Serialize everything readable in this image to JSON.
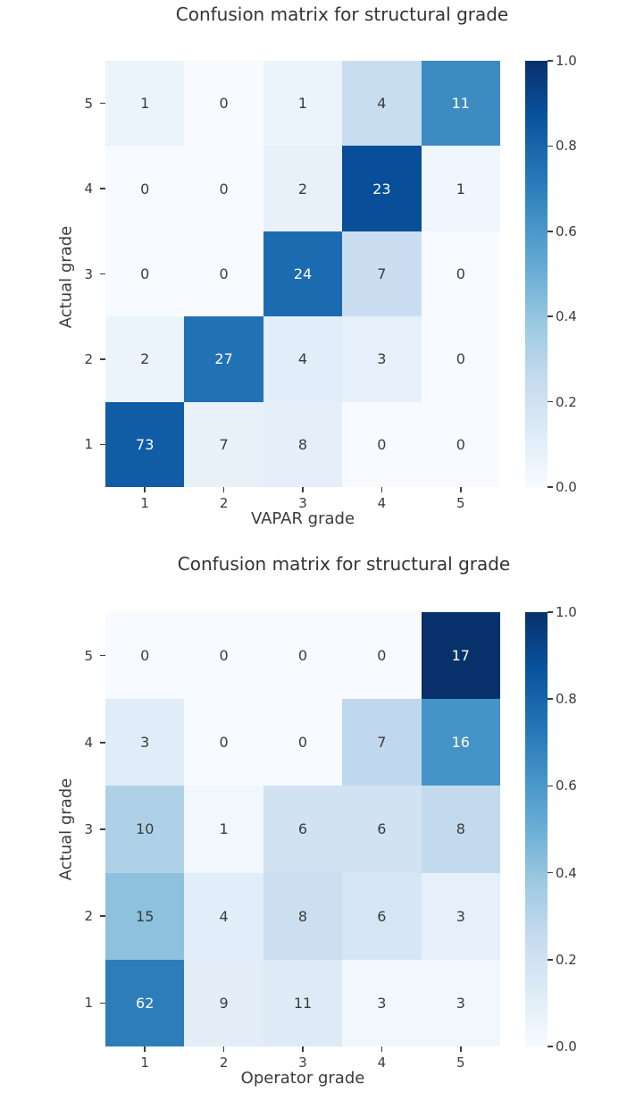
{
  "colors": {
    "background": "#ffffff",
    "title_text": "#333333",
    "axis_text": "#3b3b3b",
    "annot_dark": "#3b3b3b",
    "annot_light": "#ffffff",
    "colormap_name": "Blues",
    "blues": [
      [
        0.0,
        "#f7fbff"
      ],
      [
        0.125,
        "#deebf7"
      ],
      [
        0.25,
        "#c6dbef"
      ],
      [
        0.375,
        "#9ecae1"
      ],
      [
        0.5,
        "#6baed6"
      ],
      [
        0.625,
        "#4292c6"
      ],
      [
        0.75,
        "#2171b5"
      ],
      [
        0.875,
        "#08519c"
      ],
      [
        1.0,
        "#08306b"
      ]
    ]
  },
  "chart_data": [
    {
      "type": "heatmap",
      "title": "Confusion matrix for structural grade",
      "xlabel": "VAPAR grade",
      "ylabel": "Actual grade",
      "x_ticks": [
        "1",
        "2",
        "3",
        "4",
        "5"
      ],
      "y_ticks": [
        "5",
        "4",
        "3",
        "2",
        "1"
      ],
      "rows": [
        [
          1,
          0,
          1,
          4,
          11
        ],
        [
          0,
          0,
          2,
          23,
          1
        ],
        [
          0,
          0,
          24,
          7,
          0
        ],
        [
          2,
          27,
          4,
          3,
          0
        ],
        [
          73,
          7,
          8,
          0,
          0
        ]
      ],
      "cell_color_normalization": "row",
      "colorbar_ticks": [
        "1.0",
        "0.8",
        "0.6",
        "0.4",
        "0.2",
        "0.0"
      ],
      "colorbar_range": [
        0,
        1
      ],
      "legend_position": "right-colorbar",
      "grid": false
    },
    {
      "type": "heatmap",
      "title": "Confusion matrix for structural grade",
      "xlabel": "Operator grade",
      "ylabel": "Actual grade",
      "x_ticks": [
        "1",
        "2",
        "3",
        "4",
        "5"
      ],
      "y_ticks": [
        "5",
        "4",
        "3",
        "2",
        "1"
      ],
      "rows": [
        [
          0,
          0,
          0,
          0,
          17
        ],
        [
          3,
          0,
          0,
          7,
          16
        ],
        [
          10,
          1,
          6,
          6,
          8
        ],
        [
          15,
          4,
          8,
          6,
          3
        ],
        [
          62,
          9,
          11,
          3,
          3
        ]
      ],
      "cell_color_normalization": "row",
      "colorbar_ticks": [
        "1.0",
        "0.8",
        "0.6",
        "0.4",
        "0.2",
        "0.0"
      ],
      "colorbar_range": [
        0,
        1
      ],
      "legend_position": "right-colorbar",
      "grid": false
    }
  ]
}
